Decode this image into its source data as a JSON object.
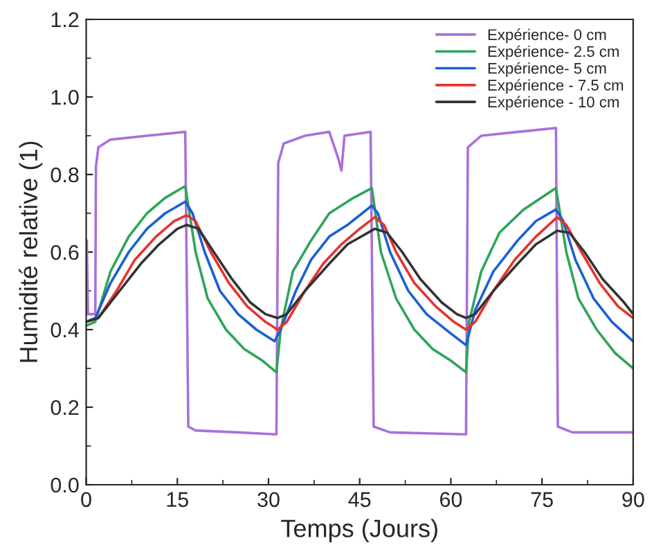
{
  "chart_data": {
    "type": "line",
    "xlabel": "Temps (Jours)",
    "ylabel": "Humidité relative (1)",
    "xlim": [
      0,
      90
    ],
    "ylim": [
      0,
      1.2
    ],
    "xticks": [
      0,
      15,
      30,
      45,
      60,
      75,
      90
    ],
    "yticks": [
      {
        "value": 0,
        "label": "0.0"
      },
      0.2,
      0.4,
      0.6,
      0.8,
      {
        "value": 1.0,
        "label": "1.0"
      },
      1.2
    ],
    "grid": false,
    "legend": "top right",
    "marker": "none",
    "line_style": "solid",
    "series": [
      {
        "name": "Expérience- 0 cm",
        "color": "#a970dc",
        "x": [
          0,
          0.1,
          0.3,
          1.5,
          1.6,
          2,
          4,
          10,
          16.3,
          16.8,
          18,
          25,
          31.3,
          31.6,
          32.5,
          36,
          40,
          41.5,
          42,
          42.5,
          46.8,
          47.3,
          50,
          62.5,
          62.8,
          65,
          77.3,
          77.6,
          80,
          90
        ],
        "values": [
          0.44,
          0.63,
          0.44,
          0.44,
          0.82,
          0.87,
          0.89,
          0.9,
          0.91,
          0.15,
          0.14,
          0.135,
          0.13,
          0.83,
          0.88,
          0.9,
          0.91,
          0.84,
          0.81,
          0.9,
          0.91,
          0.15,
          0.135,
          0.13,
          0.87,
          0.9,
          0.92,
          0.15,
          0.135,
          0.135
        ]
      },
      {
        "name": "Expérience- 2.5 cm",
        "color": "#2ea55a",
        "x": [
          0,
          1.5,
          4,
          7,
          10,
          13,
          16.3,
          18,
          20,
          23,
          26,
          29,
          31.3,
          32,
          34,
          37,
          40,
          42,
          44,
          47,
          48.5,
          51,
          54,
          57,
          60,
          62.5,
          63,
          65,
          68,
          72,
          77.3,
          79,
          81,
          84,
          87,
          90
        ],
        "values": [
          0.41,
          0.42,
          0.55,
          0.64,
          0.7,
          0.74,
          0.77,
          0.6,
          0.48,
          0.4,
          0.35,
          0.32,
          0.29,
          0.4,
          0.55,
          0.63,
          0.7,
          0.72,
          0.74,
          0.765,
          0.6,
          0.48,
          0.4,
          0.35,
          0.32,
          0.29,
          0.42,
          0.55,
          0.65,
          0.71,
          0.765,
          0.6,
          0.48,
          0.4,
          0.34,
          0.3
        ]
      },
      {
        "name": "Expérience- 5 cm",
        "color": "#1a5fd6",
        "x": [
          0,
          1.5,
          4,
          7,
          10,
          13,
          16.3,
          17.5,
          19.5,
          22,
          25,
          28,
          31,
          32,
          34.5,
          37,
          40,
          43,
          47,
          48,
          50,
          53,
          56,
          60,
          62.5,
          64,
          67,
          71,
          74,
          77.3,
          78.5,
          80.5,
          83.5,
          86.5,
          90
        ],
        "values": [
          0.42,
          0.43,
          0.52,
          0.6,
          0.66,
          0.7,
          0.73,
          0.7,
          0.6,
          0.5,
          0.44,
          0.4,
          0.37,
          0.4,
          0.5,
          0.58,
          0.64,
          0.67,
          0.72,
          0.7,
          0.6,
          0.5,
          0.44,
          0.39,
          0.36,
          0.45,
          0.55,
          0.63,
          0.68,
          0.71,
          0.68,
          0.58,
          0.48,
          0.42,
          0.37
        ]
      },
      {
        "name": "Expérience - 7.5 cm",
        "color": "#e8322d",
        "x": [
          0,
          2,
          5,
          8,
          11.5,
          14.5,
          16.5,
          18,
          20.5,
          23.5,
          26.5,
          29.5,
          31.5,
          33,
          36,
          39,
          42,
          45,
          47.5,
          49,
          51,
          54,
          57.5,
          60.5,
          62.5,
          64,
          67,
          70.5,
          74,
          77.5,
          79,
          81.5,
          84.5,
          87.5,
          90
        ],
        "values": [
          0.42,
          0.43,
          0.5,
          0.58,
          0.64,
          0.68,
          0.695,
          0.68,
          0.6,
          0.52,
          0.46,
          0.42,
          0.4,
          0.42,
          0.5,
          0.57,
          0.62,
          0.66,
          0.69,
          0.67,
          0.6,
          0.52,
          0.46,
          0.42,
          0.4,
          0.42,
          0.5,
          0.58,
          0.64,
          0.69,
          0.67,
          0.6,
          0.52,
          0.46,
          0.43
        ]
      },
      {
        "name": "Expérience - 10 cm",
        "color": "#333333",
        "x": [
          0,
          2,
          5.5,
          9,
          12,
          15,
          16.5,
          18.5,
          21,
          24,
          27,
          29.5,
          31.5,
          33,
          36,
          40,
          43,
          47.5,
          49.5,
          52,
          55,
          58.5,
          61,
          62.5,
          64,
          67,
          71,
          74,
          77.5,
          79.5,
          82,
          85,
          88.5,
          90
        ],
        "values": [
          0.42,
          0.43,
          0.5,
          0.57,
          0.62,
          0.66,
          0.67,
          0.66,
          0.6,
          0.53,
          0.47,
          0.44,
          0.43,
          0.44,
          0.5,
          0.57,
          0.62,
          0.66,
          0.65,
          0.6,
          0.53,
          0.47,
          0.44,
          0.43,
          0.44,
          0.5,
          0.57,
          0.62,
          0.655,
          0.65,
          0.6,
          0.53,
          0.47,
          0.44
        ]
      }
    ]
  }
}
